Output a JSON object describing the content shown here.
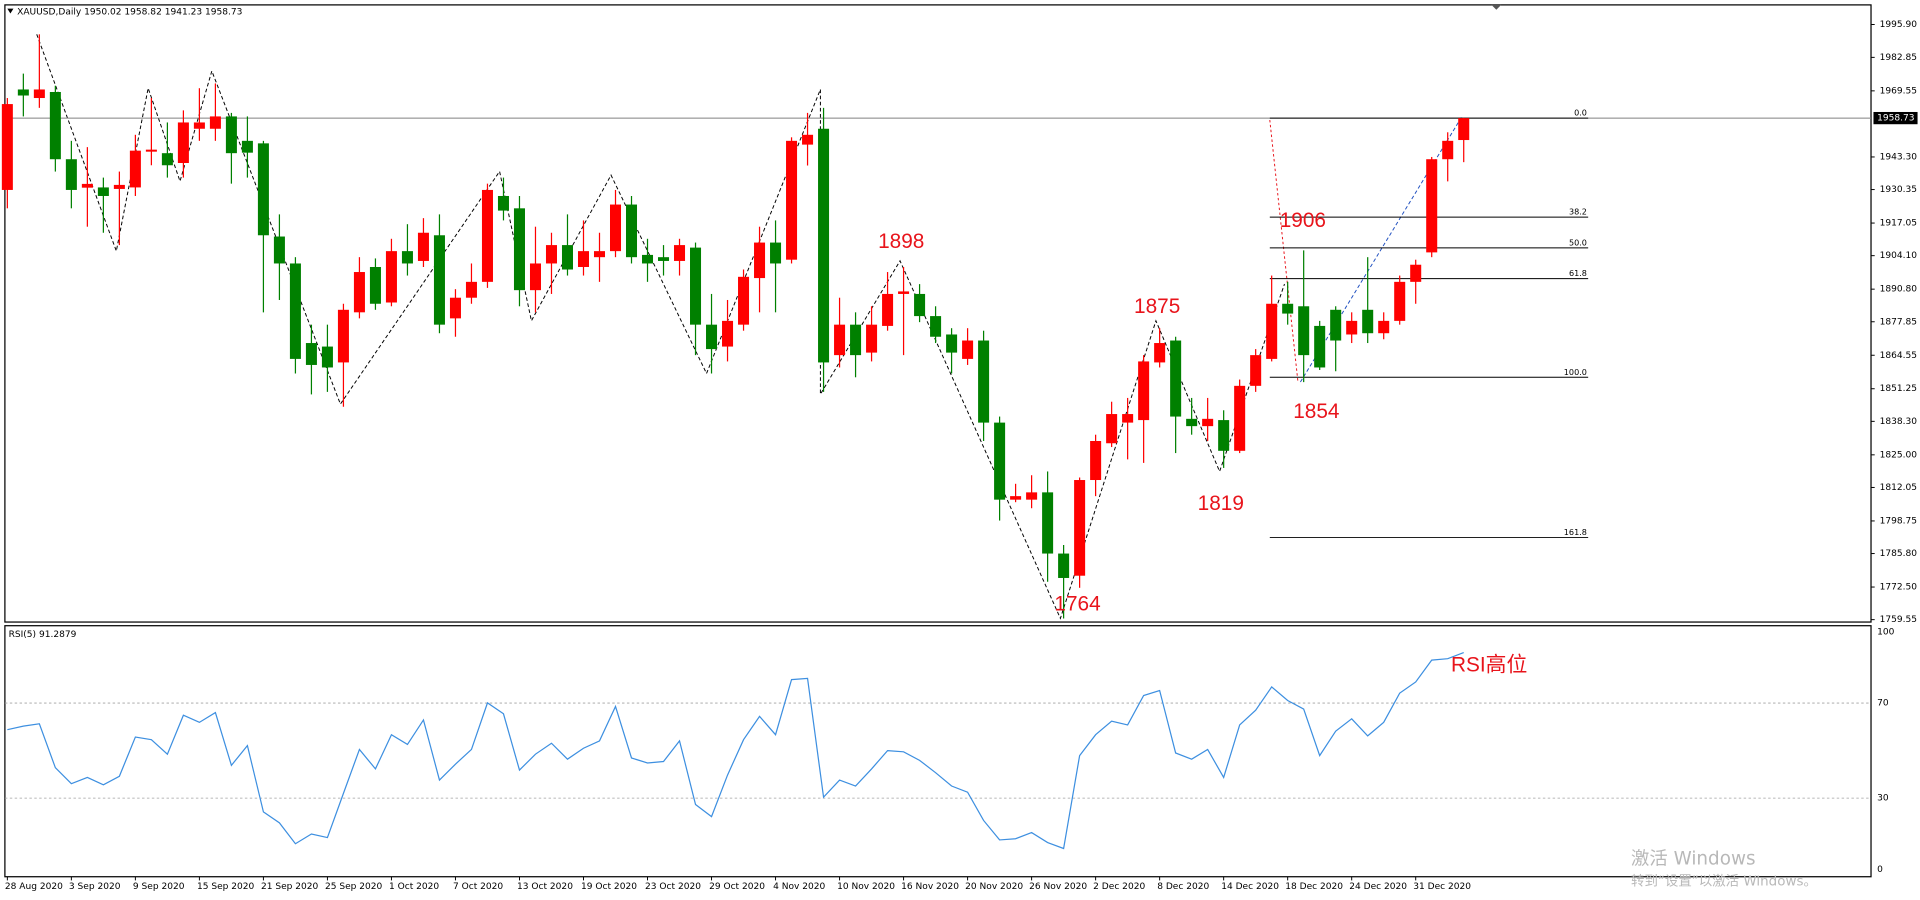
{
  "chart_data": [
    {
      "type": "candlestick",
      "title": "XAUUSD,Daily  1950.02 1958.82 1941.23 1958.73",
      "categories": [
        "28 Aug 2020",
        null,
        null,
        null,
        "3 Sep 2020",
        null,
        null,
        null,
        "9 Sep 2020",
        null,
        null,
        null,
        "15 Sep 2020",
        null,
        null,
        null,
        "21 Sep 2020",
        null,
        null,
        null,
        "25 Sep 2020",
        null,
        null,
        null,
        "1 Oct 2020",
        null,
        null,
        null,
        "7 Oct 2020",
        null,
        null,
        null,
        "13 Oct 2020",
        null,
        null,
        null,
        "19 Oct 2020",
        null,
        null,
        null,
        "23 Oct 2020",
        null,
        null,
        null,
        "29 Oct 2020",
        null,
        null,
        null,
        "4 Nov 2020",
        null,
        null,
        null,
        "10 Nov 2020",
        null,
        null,
        null,
        "16 Nov 2020",
        null,
        null,
        null,
        "20 Nov 2020",
        null,
        null,
        null,
        "26 Nov 2020",
        null,
        null,
        null,
        "2 Dec 2020",
        null,
        null,
        null,
        "8 Dec 2020",
        null,
        null,
        null,
        "14 Dec 2020",
        null,
        null,
        null,
        "18 Dec 2020",
        null,
        null,
        null,
        "24 Dec 2020",
        null,
        null,
        null,
        "31 Dec 2020",
        null,
        null,
        null
      ],
      "open": [
        1930.2,
        1970.1,
        1966.7,
        1969.1,
        1942.4,
        1931.1,
        1931.2,
        1930.6,
        1931.2,
        1945.4,
        1944.8,
        1940.9,
        1954.5,
        1954.5,
        1959.4,
        1949.7,
        1948.7,
        1911.7,
        1901.0,
        1869.4,
        1868.0,
        1861.7,
        1881.6,
        1899.6,
        1885.5,
        1905.9,
        1902.0,
        1912.2,
        1879.2,
        1887.4,
        1893.7,
        1927.8,
        1922.9,
        1890.4,
        1901.0,
        1908.3,
        1899.6,
        1903.5,
        1905.9,
        1924.4,
        1904.4,
        1903.5,
        1902.0,
        1907.3,
        1876.7,
        1868.0,
        1876.7,
        1895.2,
        1909.3,
        1902.5,
        1948.2,
        1954.5,
        1864.6,
        1876.7,
        1865.6,
        1876.2,
        1888.9,
        1888.9,
        1880.1,
        1872.8,
        1863.1,
        1870.4,
        1837.8,
        1807.2,
        1807.2,
        1810.1,
        1785.8,
        1777.0,
        1815.0,
        1829.6,
        1837.8,
        1838.8,
        1861.7,
        1870.4,
        1839.3,
        1836.4,
        1838.8,
        1826.6,
        1852.4,
        1863.1,
        1885.0,
        1884.0,
        1876.2,
        1882.6,
        1872.8,
        1882.6,
        1873.3,
        1878.2,
        1893.7,
        1905.4,
        1942.4,
        1950.02
      ],
      "high": [
        1966.7,
        1976.4,
        1992.0,
        1971.6,
        1949.7,
        1947.2,
        1935.1,
        1937.5,
        1952.1,
        1966.7,
        1957.0,
        1961.8,
        1970.6,
        1972.5,
        1960.8,
        1959.4,
        1949.7,
        1920.5,
        1903.5,
        1876.7,
        1876.7,
        1885.0,
        1903.5,
        1903.0,
        1910.8,
        1916.6,
        1919.0,
        1920.5,
        1890.8,
        1901.0,
        1932.7,
        1935.1,
        1927.8,
        1915.6,
        1913.2,
        1920.5,
        1918.1,
        1913.2,
        1930.2,
        1927.8,
        1910.8,
        1908.3,
        1910.8,
        1909.3,
        1888.9,
        1886.5,
        1898.6,
        1915.6,
        1918.1,
        1951.1,
        1960.8,
        1962.8,
        1887.4,
        1881.6,
        1884.0,
        1897.6,
        1899.6,
        1892.8,
        1884.0,
        1875.3,
        1875.3,
        1874.3,
        1840.2,
        1813.5,
        1816.9,
        1818.4,
        1789.2,
        1816.0,
        1833.0,
        1846.1,
        1847.6,
        1864.6,
        1875.3,
        1871.9,
        1847.6,
        1847.6,
        1842.7,
        1854.9,
        1867.0,
        1896.2,
        1893.7,
        1906.2,
        1878.2,
        1884.0,
        1881.6,
        1903.5,
        1881.6,
        1896.2,
        1902.5,
        1943.3,
        1953.1,
        1958.82
      ],
      "low": [
        1922.9,
        1959.4,
        1962.8,
        1937.5,
        1922.9,
        1915.6,
        1913.2,
        1908.3,
        1927.8,
        1940.0,
        1935.1,
        1935.1,
        1949.7,
        1949.7,
        1932.7,
        1935.1,
        1881.6,
        1886.5,
        1857.3,
        1849.0,
        1850.0,
        1844.1,
        1879.2,
        1882.6,
        1884.0,
        1896.2,
        1899.6,
        1873.3,
        1871.9,
        1885.0,
        1891.3,
        1918.1,
        1884.0,
        1881.6,
        1888.9,
        1896.2,
        1896.2,
        1893.7,
        1903.5,
        1901.0,
        1893.7,
        1896.2,
        1896.2,
        1864.6,
        1857.3,
        1862.1,
        1874.3,
        1881.6,
        1881.6,
        1901.0,
        1939.9,
        1850.0,
        1859.7,
        1855.8,
        1862.1,
        1874.3,
        1864.6,
        1877.7,
        1869.4,
        1857.3,
        1860.7,
        1830.5,
        1798.9,
        1806.2,
        1803.8,
        1774.6,
        1760.0,
        1772.2,
        1808.6,
        1828.1,
        1823.2,
        1821.8,
        1859.7,
        1825.7,
        1833.0,
        1830.5,
        1819.8,
        1825.7,
        1850.0,
        1862.1,
        1876.7,
        1853.9,
        1858.7,
        1858.2,
        1869.4,
        1869.4,
        1870.9,
        1876.7,
        1885.0,
        1903.5,
        1933.6,
        1941.23
      ],
      "close": [
        1964.3,
        1967.7,
        1970.1,
        1942.4,
        1930.2,
        1932.6,
        1927.8,
        1932.2,
        1945.8,
        1946.2,
        1940.0,
        1957.0,
        1957.0,
        1959.4,
        1944.8,
        1945.0,
        1912.2,
        1901.0,
        1863.1,
        1860.7,
        1859.7,
        1882.6,
        1897.6,
        1885.0,
        1905.9,
        1901.0,
        1913.2,
        1876.7,
        1887.4,
        1893.7,
        1930.2,
        1922.0,
        1890.4,
        1901.0,
        1908.3,
        1898.6,
        1905.9,
        1905.9,
        1924.4,
        1903.5,
        1901.0,
        1902.0,
        1908.3,
        1876.7,
        1867.0,
        1878.2,
        1895.7,
        1909.3,
        1901.0,
        1949.7,
        1952.1,
        1861.7,
        1876.7,
        1864.6,
        1876.7,
        1888.9,
        1889.9,
        1880.1,
        1871.9,
        1865.6,
        1870.4,
        1837.8,
        1807.2,
        1808.6,
        1810.1,
        1785.8,
        1776.1,
        1815.0,
        1830.5,
        1841.2,
        1841.2,
        1862.1,
        1869.4,
        1840.2,
        1836.4,
        1839.3,
        1826.6,
        1852.4,
        1864.6,
        1885.0,
        1881.1,
        1864.6,
        1859.7,
        1870.4,
        1878.2,
        1873.3,
        1878.2,
        1893.7,
        1900.5,
        1942.4,
        1949.7,
        1958.73
      ],
      "up_color": "#ff0000",
      "down_color": "#008000",
      "ylim": [
        1758.6,
        2003.2
      ],
      "yticks": [
        {
          "value": 1995.9,
          "label": "1995.90"
        },
        1982.85,
        1969.55,
        {
          "value": 1943.3,
          "label": "1943.30"
        },
        1930.35,
        1917.05,
        {
          "value": 1904.1,
          "label": "1904.10"
        },
        {
          "value": 1890.8,
          "label": "1890.80"
        },
        1877.85,
        1864.55,
        1851.25,
        {
          "value": 1838.3,
          "label": "1838.30"
        },
        {
          "value": 1825.0,
          "label": "1825.00"
        },
        1812.05,
        1798.75,
        {
          "value": 1785.8,
          "label": "1785.80"
        },
        {
          "value": 1772.5,
          "label": "1772.50"
        },
        1759.55
      ],
      "last_price": 1958.73,
      "fib_levels": [
        {
          "value": 1958.73,
          "label": "0.0"
        },
        {
          "value": 1919.4,
          "label": "38.2"
        },
        {
          "value": 1907.2,
          "label": "50.0"
        },
        {
          "value": 1895.0,
          "label": "61.8"
        },
        {
          "value": 1855.8,
          "label": "100.0"
        },
        {
          "value": 1792.2,
          "label": "161.8"
        }
      ],
      "annotations": [
        "1898",
        "1875",
        "1906",
        "1854",
        "1819",
        "1764"
      ]
    },
    {
      "type": "line",
      "title": "RSI(5) 91.2879",
      "values": [
        58.8,
        60.3,
        61.3,
        42.8,
        36.1,
        38.7,
        35.6,
        39.2,
        55.7,
        54.6,
        48.5,
        64.9,
        61.9,
        66.0,
        43.8,
        52.1,
        24.2,
        19.6,
        10.8,
        14.9,
        13.4,
        32.0,
        50.5,
        42.3,
        56.7,
        52.6,
        62.9,
        37.6,
        44.3,
        50.5,
        70.1,
        65.5,
        41.8,
        48.5,
        53.1,
        46.4,
        51.0,
        54.1,
        68.6,
        46.9,
        44.8,
        45.4,
        54.1,
        27.3,
        22.2,
        39.7,
        54.6,
        64.4,
        56.7,
        79.9,
        80.4,
        30.4,
        37.6,
        35.1,
        42.3,
        50.0,
        49.5,
        45.9,
        40.7,
        35.1,
        32.5,
        20.6,
        12.4,
        12.9,
        15.5,
        11.3,
        8.8,
        47.9,
        56.7,
        62.4,
        60.8,
        73.2,
        75.3,
        49.0,
        46.4,
        50.5,
        38.7,
        60.8,
        67.0,
        76.8,
        71.1,
        67.5,
        47.9,
        58.2,
        63.4,
        56.2,
        61.9,
        74.2,
        78.9,
        88.1,
        88.7,
        91.2879
      ],
      "color": "#3d8fe0",
      "ylim": [
        0,
        100
      ],
      "yticks": [
        0,
        30,
        70,
        100
      ],
      "annotation": "RSI高位"
    },
    {
      "type": "watermark",
      "lines": [
        "激活 Windows",
        "转到“设置”以激活 Windows。"
      ]
    }
  ]
}
